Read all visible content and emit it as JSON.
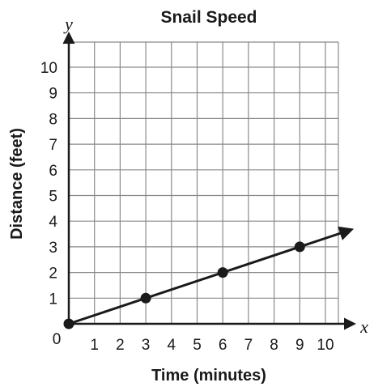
{
  "chart_data": {
    "type": "line",
    "title": "Snail Speed",
    "xlabel": "Time (minutes)",
    "ylabel": "Distance (feet)",
    "x_axis_var": "x",
    "y_axis_var": "y",
    "origin_label": "0",
    "xlim": [
      0,
      10
    ],
    "ylim": [
      0,
      10
    ],
    "x_ticks": [
      "1",
      "2",
      "3",
      "4",
      "5",
      "6",
      "7",
      "8",
      "9",
      "10"
    ],
    "y_ticks": [
      "1",
      "2",
      "3",
      "4",
      "5",
      "6",
      "7",
      "8",
      "9",
      "10"
    ],
    "grid": true,
    "series": [
      {
        "points": [
          {
            "x": 0,
            "y": 0
          },
          {
            "x": 3,
            "y": 1
          },
          {
            "x": 6,
            "y": 2
          },
          {
            "x": 9,
            "y": 3
          }
        ],
        "ray_end": {
          "x": 11,
          "y": 3.667
        },
        "color": "#1a1a1a"
      }
    ]
  }
}
